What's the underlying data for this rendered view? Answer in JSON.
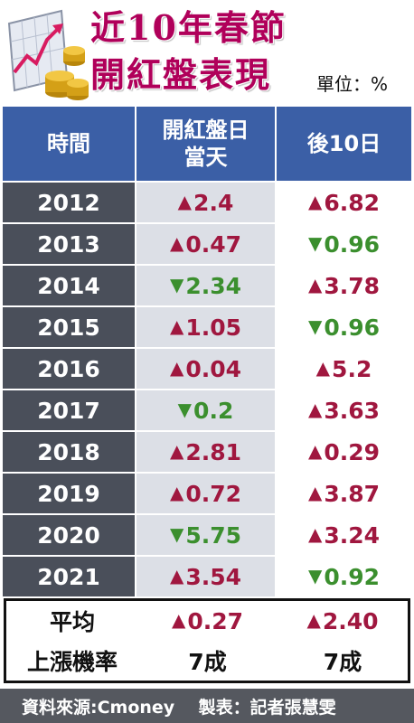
{
  "title": {
    "line1": "近10年春節",
    "line2": "開紅盤表現"
  },
  "unit": "單位：%",
  "colors": {
    "header_bg": "#3b5fa6",
    "year_bg": "#4a4f5a",
    "up": "#a0173f",
    "down": "#3b8f2e",
    "title": "#b0005a"
  },
  "chart_data": {
    "type": "table",
    "columns": [
      "時間",
      "開紅盤日\n當天",
      "後10日"
    ],
    "rows": [
      {
        "year": "2012",
        "day": {
          "dir": "up",
          "value": "2.4"
        },
        "after": {
          "dir": "up",
          "value": "6.82"
        }
      },
      {
        "year": "2013",
        "day": {
          "dir": "up",
          "value": "0.47"
        },
        "after": {
          "dir": "down",
          "value": "0.96"
        }
      },
      {
        "year": "2014",
        "day": {
          "dir": "down",
          "value": "2.34"
        },
        "after": {
          "dir": "up",
          "value": "3.78"
        }
      },
      {
        "year": "2015",
        "day": {
          "dir": "up",
          "value": "1.05"
        },
        "after": {
          "dir": "down",
          "value": "0.96"
        }
      },
      {
        "year": "2016",
        "day": {
          "dir": "up",
          "value": "0.04"
        },
        "after": {
          "dir": "up",
          "value": "5.2"
        }
      },
      {
        "year": "2017",
        "day": {
          "dir": "down",
          "value": "0.2"
        },
        "after": {
          "dir": "up",
          "value": "3.63"
        }
      },
      {
        "year": "2018",
        "day": {
          "dir": "up",
          "value": "2.81"
        },
        "after": {
          "dir": "up",
          "value": "0.29"
        }
      },
      {
        "year": "2019",
        "day": {
          "dir": "up",
          "value": "0.72"
        },
        "after": {
          "dir": "up",
          "value": "3.87"
        }
      },
      {
        "year": "2020",
        "day": {
          "dir": "down",
          "value": "5.75"
        },
        "after": {
          "dir": "up",
          "value": "3.24"
        }
      },
      {
        "year": "2021",
        "day": {
          "dir": "up",
          "value": "3.54"
        },
        "after": {
          "dir": "down",
          "value": "0.92"
        }
      }
    ],
    "summary": [
      {
        "label": "平均",
        "day": {
          "dir": "up",
          "value": "0.27"
        },
        "after": {
          "dir": "up",
          "value": "2.40"
        }
      },
      {
        "label": "上漲機率",
        "day": {
          "dir": "",
          "value": "7成"
        },
        "after": {
          "dir": "",
          "value": "7成"
        }
      }
    ]
  },
  "footer": "資料來源:Cmoney    製表：記者張慧雯",
  "icons": {
    "logo": "chart-with-coins-icon",
    "up": "triangle-up-icon",
    "down": "triangle-down-icon"
  }
}
